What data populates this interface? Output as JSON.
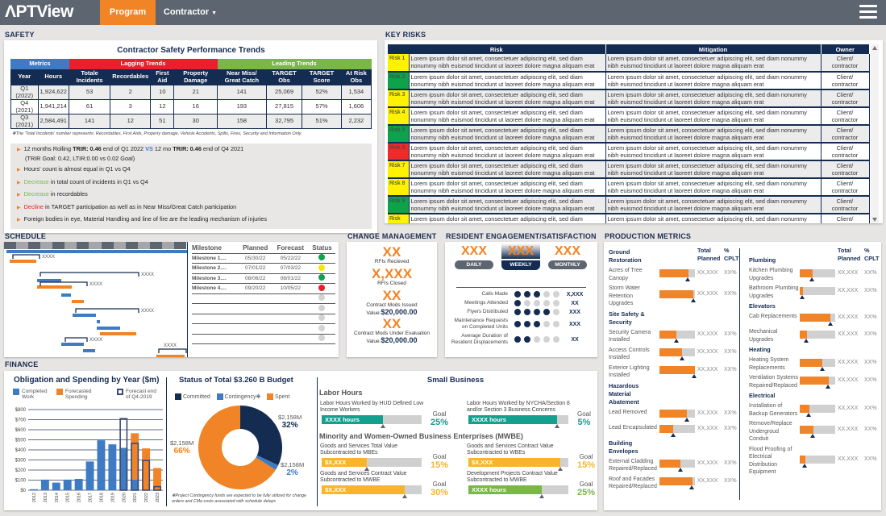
{
  "header": {
    "logo": "PTView",
    "tabs": [
      {
        "label": "Program",
        "active": true
      },
      {
        "label": "Contractor",
        "dropdown": true
      }
    ]
  },
  "colors": {
    "navy": "#152c52",
    "orange": "#f08427",
    "blue": "#3e7bc4",
    "red": "#e8202a",
    "green": "#7ab648",
    "teal": "#13a08e",
    "yellow": "#f7b52c",
    "risk_yellow": "#fff200",
    "risk_green": "#0ea24b",
    "risk_red": "#ee2a2a"
  },
  "safety": {
    "section": "SAFETY",
    "title": "Contractor Safety Performance Trends",
    "groups": [
      "Metrics",
      "Lagging Trends",
      "Leading Trends"
    ],
    "columns": [
      "Year",
      "Hours",
      "Totale Incidents",
      "Recordables",
      "First Aid",
      "Property Damage",
      "Near Miss/ Great Catch",
      "TARGET Obs",
      "TARGET Score",
      "At Risk Obs"
    ],
    "rows": [
      [
        "Q1 (2022)",
        "1,924,622",
        "53",
        "2",
        "10",
        "21",
        "141",
        "25,069",
        "52%",
        "1,534"
      ],
      [
        "Q4 (2021)",
        "1,941,214",
        "61",
        "3",
        "12",
        "16",
        "193",
        "27,815",
        "57%",
        "1,606"
      ],
      [
        "Q3 (2021)",
        "2,584,491",
        "141",
        "12",
        "51",
        "30",
        "158",
        "32,795",
        "51%",
        "2,232"
      ]
    ],
    "footnote": "❋The 'Total Incidents' number represents: Recordables, First Aids, Property damage, Vehicle Accidents, Spills, Fires, Security and Information Only.",
    "bullets": {
      "b1": {
        "a": "12 months Rolling ",
        "b": "TRIR: 0.46",
        "c": " end of Q1 2022 ",
        "d": "VS",
        "e": " 12 mo ",
        "f": "TRIR: 0.46",
        "g": " end of Q4 2021",
        "h": "(TRIR Goal: 0.42, LTIR:0.00 vs 0.02 Goal)"
      },
      "b2": "Hours' count is almost equal in Q1 vs Q4",
      "b3": {
        "hl": "Decrease",
        "rest": " in total count of incidents in Q1 vs Q4"
      },
      "b4": {
        "hl": "Decrease",
        "rest": " in recordables"
      },
      "b5": {
        "hl": "Decline",
        "rest": " in TARGET participation as well as in Near Miss/Great Catch participation"
      },
      "b6": "Foreign bodies in eye, Material Handling and line of fire are the leading mechanism of injuries"
    }
  },
  "risks": {
    "section": "KEY RISKS",
    "columns": [
      "Risk",
      "Mitigation",
      "Owner"
    ],
    "rows": [
      {
        "id": "Risk 1",
        "status": "yellow",
        "risk": "Lorem ipsum dolor sit amet, consectetuer adipiscing elit, sed diam nonummy nibh euismod tincidunt ut laoreet dolore magna aliquam erat",
        "mitigation": "Lorem ipsum dolor sit amet, consectetuer adipiscing elit, sed diam nonummy nibh euismod tincidunt ut laoreet dolore magna aliquam erat",
        "owner": "Client/ contractor"
      },
      {
        "id": "Risk 2",
        "status": "green",
        "risk": "Lorem ipsum dolor sit amet, consectetuer adipiscing elit, sed diam nonummy nibh euismod tincidunt ut laoreet dolore magna aliquam erat",
        "mitigation": "Lorem ipsum dolor sit amet, consectetuer adipiscing elit, sed diam nonummy nibh euismod tincidunt ut laoreet dolore magna aliquam erat",
        "owner": "Client/ contractor"
      },
      {
        "id": "Risk 3",
        "status": "yellow",
        "risk": "Lorem ipsum dolor sit amet, consectetuer adipiscing elit, sed diam nonummy nibh euismod tincidunt ut laoreet dolore magna aliquam erat",
        "mitigation": "Lorem ipsum dolor sit amet, consectetuer adipiscing elit, sed diam nonummy nibh euismod tincidunt ut laoreet dolore magna aliquam erat",
        "owner": "Client/ contractor"
      },
      {
        "id": "Risk 4",
        "status": "yellow",
        "risk": "Lorem ipsum dolor sit amet, consectetuer adipiscing elit, sed diam nonummy nibh euismod tincidunt ut laoreet dolore magna aliquam erat",
        "mitigation": "Lorem ipsum dolor sit amet, consectetuer adipiscing elit, sed diam nonummy nibh euismod tincidunt ut laoreet dolore magna aliquam erat",
        "owner": "Client/ contractor"
      },
      {
        "id": "Risk 5",
        "status": "green",
        "risk": "Lorem ipsum dolor sit amet, consectetuer adipiscing elit, sed diam nonummy nibh euismod tincidunt ut laoreet dolore magna aliquam erat",
        "mitigation": "Lorem ipsum dolor sit amet, consectetuer adipiscing elit, sed diam nonummy nibh euismod tincidunt ut laoreet dolore magna aliquam erat",
        "owner": "Client/ contractor"
      },
      {
        "id": "Risk 6",
        "status": "red",
        "risk": "Lorem ipsum dolor sit amet, consectetuer adipiscing elit, sed diam nonummy nibh euismod tincidunt ut laoreet dolore magna aliquam erat",
        "mitigation": "Lorem ipsum dolor sit amet, consectetuer adipiscing elit, sed diam nonummy nibh euismod tincidunt ut laoreet dolore magna aliquam erat",
        "owner": "Client/ contractor"
      },
      {
        "id": "Risk 7",
        "status": "yellow",
        "risk": "Lorem ipsum dolor sit amet, consectetuer adipiscing elit, sed diam nonummy nibh euismod tincidunt ut laoreet dolore magna aliquam erat",
        "mitigation": "Lorem ipsum dolor sit amet, consectetuer adipiscing elit, sed diam nonummy nibh euismod tincidunt ut laoreet dolore magna aliquam erat",
        "owner": "Client/ contractor"
      },
      {
        "id": "Risk 8",
        "status": "yellow",
        "risk": "Lorem ipsum dolor sit amet, consectetuer adipiscing elit, sed diam nonummy nibh euismod tincidunt ut laoreet dolore magna aliquam erat",
        "mitigation": "Lorem ipsum dolor sit amet, consectetuer adipiscing elit, sed diam nonummy nibh euismod tincidunt ut laoreet dolore magna aliquam erat",
        "owner": "Client/ contractor"
      },
      {
        "id": "Risk 9",
        "status": "green",
        "risk": "Lorem ipsum dolor sit amet, consectetuer adipiscing elit, sed diam nonummy nibh euismod tincidunt ut laoreet dolore magna aliquam erat",
        "mitigation": "Lorem ipsum dolor sit amet, consectetuer adipiscing elit, sed diam nonummy nibh euismod tincidunt ut laoreet dolore magna aliquam erat",
        "owner": "Client/ contractor"
      },
      {
        "id": "Risk",
        "status": "yellow",
        "risk": "Lorem ipsum dolor sit amet, consectetuer adipiscing elit, sed diam nonummy nibh euismod tincidunt ut laoreet dolore magna aliquam erat",
        "mitigation": "Lorem ipsum dolor sit amet, consectetuer adipiscing elit, sed diam nonummy nibh euismod tincidunt ut laoreet dolore magna aliquam erat",
        "owner": "Client/ contractor"
      }
    ]
  },
  "schedule": {
    "section": "SCHEDULE",
    "gantt_label": "XXXX",
    "columns": [
      "Milestone",
      "Planned",
      "Forecast",
      "Status"
    ],
    "rows": [
      [
        "Milestone 1....",
        "05/30/22",
        "05/22/22",
        "green"
      ],
      [
        "Milestone 2....",
        "07/01/22",
        "07/03/22",
        "yellow"
      ],
      [
        "Milestone 3....",
        "08/06/22",
        "08/01/22",
        "green"
      ],
      [
        "Milestone 4....",
        "09/20/22",
        "10/05/22",
        "red"
      ],
      [
        "",
        "",
        "",
        "grey"
      ],
      [
        "",
        "",
        "",
        "grey"
      ],
      [
        "",
        "",
        "",
        "grey"
      ],
      [
        "",
        "",
        "",
        "grey"
      ],
      [
        "",
        "",
        "",
        "grey"
      ]
    ]
  },
  "change": {
    "section": "CHANGE MANAGEMENT",
    "rfis_received": "XX",
    "rfis_received_label": "RFIs Recieved",
    "rfis_closed": "X,XXX",
    "rfis_closed_label": "RFIs Closed",
    "mods_issued": "XX",
    "mods_issued_label": "Contract Mods Issued",
    "mods_issued_value_label": "Value:",
    "mods_issued_value": "$20,000.00",
    "mods_eval": "XX",
    "mods_eval_label": "Contract Mods Under Evaluation",
    "mods_eval_value_label": "Value:",
    "mods_eval_value": "$20,000.00"
  },
  "resident": {
    "section": "RESIDENT ENGAGEMENT/SATISFACTION",
    "periods": [
      {
        "value": "XXX",
        "label": "DAILY"
      },
      {
        "value": "XXX",
        "label": "WEEKLY",
        "active": true
      },
      {
        "value": "XXX",
        "label": "MONTHLY"
      }
    ],
    "metrics": [
      {
        "label": "Calls Made",
        "dots": 3,
        "value": "X,XXX"
      },
      {
        "label": "Meetings Attended",
        "dots": 1,
        "value": "XX"
      },
      {
        "label": "Flyers Distributed",
        "dots": 4,
        "value": "XXX"
      },
      {
        "label": "Maintenance Requests on Completed Units",
        "dots": 3,
        "value": "XXX"
      },
      {
        "label": "Average Duration of Resident Displacements",
        "dots": 2,
        "value": "XX"
      }
    ]
  },
  "production": {
    "section": "PRODUCTION METRICS",
    "col_total": "Total Planned",
    "col_pct": "% CPLT",
    "left": [
      {
        "section": "Ground Restoration",
        "header": true
      },
      {
        "label": "Acres of Tree Canopy",
        "progress": 0.82,
        "target": 0.8,
        "total": "XX,XXX",
        "pct": "XX%"
      },
      {
        "label": "Storm Water Retention Upgrades",
        "progress": 0.96,
        "target": 0.95,
        "total": "XX,XXX",
        "pct": "XX%"
      },
      {
        "section": "Site Safety & Security"
      },
      {
        "label": "Security Camera Installed",
        "progress": 0.48,
        "target": 0.47,
        "total": "XX,XXX",
        "pct": "XX%"
      },
      {
        "label": "Access Controls Installed",
        "progress": 0.64,
        "target": 0.63,
        "total": "XX,XXX",
        "pct": "XX%"
      },
      {
        "label": "Exterior Lighting Installed",
        "progress": 1.0,
        "target": 0.98,
        "total": "XX,XXX",
        "pct": "XX%"
      },
      {
        "section": "Hazardous Material Abatement"
      },
      {
        "label": "Lead Removed",
        "progress": 0.78,
        "target": 0.77,
        "total": "XX,XXX",
        "pct": "XX%"
      },
      {
        "label": "Lead Encapsulated",
        "progress": 0.39,
        "target": 0.39,
        "total": "XX,XXX",
        "pct": "XX%"
      },
      {
        "section": "Building Envelopes"
      },
      {
        "label": "External Cladding Repaired/Replaced",
        "progress": 0.6,
        "target": 0.58,
        "total": "XX,XXX",
        "pct": "XX%"
      },
      {
        "label": "Roof and Facades Repaired/Replaced",
        "progress": 0.93,
        "target": 0.92,
        "total": "XX,XXX",
        "pct": "XX%"
      }
    ],
    "right": [
      {
        "section": "Plumbing",
        "header": true
      },
      {
        "label": "Kitchen Plumbing Upgrades",
        "progress": 0.36,
        "target": 0.35,
        "total": "XX,XXX",
        "pct": "XX%"
      },
      {
        "label": "Bathroom Plumbing Upgrades",
        "progress": 0.09,
        "target": 0.07,
        "total": "XX,XXX",
        "pct": "XX%"
      },
      {
        "section": "Elevators"
      },
      {
        "label": "Cab Replacements",
        "progress": 0.86,
        "target": 0.86,
        "total": "XX,XXX",
        "pct": "XX%"
      },
      {
        "label": "Mechanical Upgrades",
        "progress": 0.2,
        "target": 0.18,
        "total": "XX,XXX",
        "pct": "XX%"
      },
      {
        "section": "Heating"
      },
      {
        "label": "Heating System Replacements",
        "progress": 0.63,
        "target": 0.63,
        "total": "XX,XXX",
        "pct": "XX%"
      },
      {
        "label": "Ventilation Systems Repaired/Replaced",
        "progress": 0.82,
        "target": 0.8,
        "total": "XX,XXX",
        "pct": "XX%"
      },
      {
        "section": "Electrical"
      },
      {
        "label": "Installation of Backup Generators",
        "progress": 0.27,
        "target": 0.25,
        "total": "XX,XXX",
        "pct": "XX%"
      },
      {
        "label": "Remove/Replace Undergroud Conduit",
        "progress": 0.38,
        "target": 0.37,
        "total": "XX,XXX",
        "pct": "XX%"
      },
      {
        "label": "Flood Proofing of Electrical Distribution Equipment",
        "progress": 0.15,
        "target": 0.13,
        "total": "XX,XXX",
        "pct": "XX%"
      }
    ]
  },
  "finance": {
    "section": "FINANCE",
    "budget": {
      "title": "Status of Total $3.260 B Budget",
      "legend": [
        "Committed",
        "Contingency❋",
        "Spent"
      ],
      "slices": [
        {
          "name": "Committed",
          "amount": "$2,158M",
          "pct": "32%",
          "value": 32
        },
        {
          "name": "Contingency",
          "amount": "$2,158M",
          "pct": "2%",
          "value": 2
        },
        {
          "name": "Spent",
          "amount": "$2,158M",
          "pct": "66%",
          "value": 66
        }
      ],
      "footnote": "❋Project Contingency funds are expected to be fully utilized for change orders and CMa costs associated with schedule delays"
    },
    "small_business": {
      "title": "Small Business",
      "labor_title": "Labor Hours",
      "mwbe_title": "Minority and Women-Owned Business Enterprises (MWBE)",
      "goal_label": "Goal",
      "items": [
        {
          "label": "Labor Hours Worked by HUD Defined Low Income Workers",
          "value": "XXXX hours",
          "progress": 0.61,
          "target": 0.61,
          "goal": "25%",
          "color": "#13a08e"
        },
        {
          "label": "Labor Hours Worked by NYCHA/Section 8 and/or Section 3 Business Concerns",
          "value": "XXXX hours",
          "progress": 0.89,
          "target": 0.89,
          "goal": "5%",
          "color": "#13a08e"
        },
        {
          "label": "Goods and Services Total Value Subcontracted to MBEs",
          "value": "$X,XXX",
          "progress": 0.45,
          "target": 0.45,
          "goal": "15%",
          "color": "#f7b52c"
        },
        {
          "label": "Goods and Services Contract Value Subcontracted to WBEs",
          "value": "$X,XXX",
          "progress": 0.92,
          "target": 0.92,
          "goal": "15%",
          "color": "#f7b52c"
        },
        {
          "label": "Goods and Services Contract Value Subcontracted to MWBE",
          "value": "$X,XXX",
          "progress": 0.83,
          "target": 0.83,
          "goal": "30%",
          "color": "#f7b52c"
        },
        {
          "label": "Development Projects Contract Value Subcontracted to MWBE",
          "value": "XXXX hours",
          "progress": 0.73,
          "target": 0.73,
          "goal": "25%",
          "color": "#7ab648"
        }
      ]
    }
  },
  "chart_data": [
    {
      "type": "bar",
      "title": "Obligation and Spending by Year ($m)",
      "legend": [
        "Completed Work",
        "Forecasted Spending",
        "Forecast end of Q4-2019"
      ],
      "categories": [
        "2012",
        "2013",
        "2014",
        "2015",
        "2016",
        "2017",
        "2018",
        "2019",
        "2020",
        "2021",
        "2022",
        "2023"
      ],
      "series": [
        {
          "name": "Completed Work",
          "values": [
            10,
            105,
            75,
            105,
            112,
            285,
            495,
            455,
            420,
            105,
            0,
            0
          ]
        },
        {
          "name": "Forecasted Spending",
          "values": [
            0,
            0,
            0,
            0,
            0,
            0,
            0,
            0,
            0,
            460,
            415,
            220
          ]
        },
        {
          "name": "Forecast end of Q4-2019",
          "values": [
            null,
            null,
            null,
            null,
            null,
            null,
            null,
            null,
            710,
            465,
            295,
            35
          ]
        }
      ],
      "yticks": [
        "$0",
        "$100",
        "$200",
        "$300",
        "$400",
        "$500",
        "$600",
        "$700",
        "$800"
      ],
      "ylim": [
        0,
        800
      ],
      "grid": true,
      "legend_position": "top"
    },
    {
      "type": "pie",
      "title": "Status of Total $3.260 B Budget",
      "categories": [
        "Committed",
        "Contingency",
        "Spent"
      ],
      "values": [
        32,
        2,
        66
      ]
    }
  ]
}
